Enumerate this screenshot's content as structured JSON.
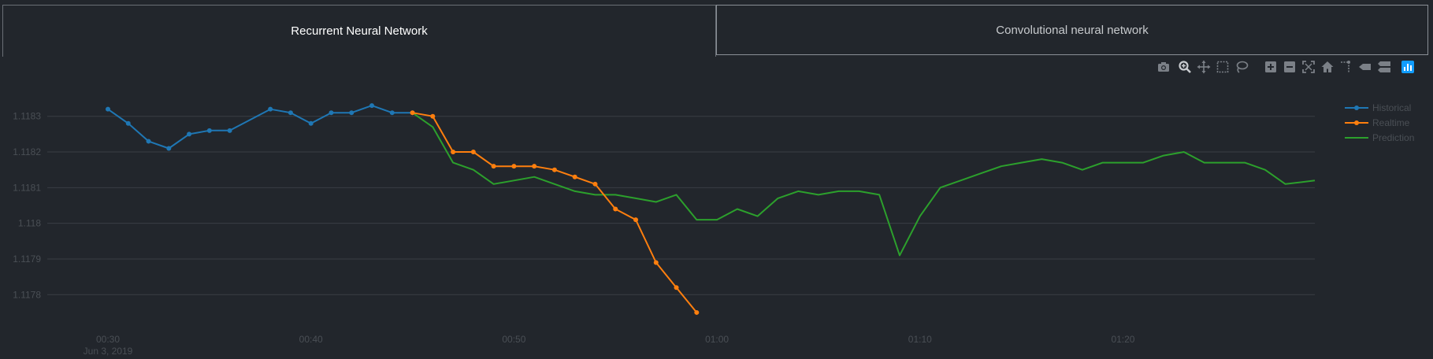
{
  "tabs": [
    {
      "label": "Recurrent Neural Network",
      "active": true
    },
    {
      "label": "Convolutional neural network",
      "active": false
    }
  ],
  "modebar": {
    "icons": [
      "camera-icon",
      "zoom-icon",
      "pan-icon",
      "box-select-icon",
      "lasso-select-icon",
      "zoom-in-icon",
      "zoom-out-icon",
      "autoscale-icon",
      "reset-axes-icon",
      "spike-lines-icon",
      "hover-closest-icon",
      "hover-compare-icon",
      "plotly-logo-icon"
    ]
  },
  "chart_data": {
    "type": "line",
    "x_tick_labels": [
      "00:30",
      "00:40",
      "00:50",
      "01:00",
      "01:10",
      "01:20"
    ],
    "x_tick_minutes": [
      30,
      40,
      50,
      60,
      70,
      80
    ],
    "x_date_label": "Jun 3, 2019",
    "y_tick_labels": [
      "1.1183",
      "1.1182",
      "1.1181",
      "1.118",
      "1.1179",
      "1.1178"
    ],
    "y_tick_values": [
      1.1183,
      1.1182,
      1.1181,
      1.118,
      1.1179,
      1.1178
    ],
    "xlim_minutes": [
      30,
      89.45
    ],
    "ylim": [
      1.11773,
      1.11837
    ],
    "legend_position": "top-right",
    "grid": true,
    "series": [
      {
        "name": "Historical",
        "color": "#1f77b4",
        "markers": true,
        "x": [
          30,
          31,
          32,
          33,
          34,
          35,
          36,
          38,
          39,
          40,
          41,
          42,
          43,
          44,
          45
        ],
        "y": [
          1.11832,
          1.11828,
          1.11823,
          1.11821,
          1.11825,
          1.11826,
          1.11826,
          1.11832,
          1.11831,
          1.11828,
          1.11831,
          1.11831,
          1.11833,
          1.11831,
          1.11831
        ]
      },
      {
        "name": "Realtime",
        "color": "#ff7f0e",
        "markers": true,
        "x": [
          45,
          46,
          47,
          48,
          49,
          50,
          51,
          52,
          53,
          54,
          55,
          56,
          57,
          58,
          59
        ],
        "y": [
          1.11831,
          1.1183,
          1.1182,
          1.1182,
          1.11816,
          1.11816,
          1.11816,
          1.11815,
          1.11813,
          1.11811,
          1.11804,
          1.11801,
          1.11789,
          1.11782,
          1.11775
        ]
      },
      {
        "name": "Prediction",
        "color": "#2ca02c",
        "markers": false,
        "x": [
          45,
          46,
          47,
          48,
          49,
          50,
          51,
          52,
          53,
          54,
          55,
          56,
          57,
          58,
          59,
          60,
          61,
          62,
          63,
          64,
          65,
          66,
          67,
          68,
          69,
          70,
          71,
          72,
          73,
          74,
          75,
          76,
          77,
          78,
          79,
          80,
          81,
          82,
          83,
          84,
          85,
          86,
          87,
          88,
          89.45
        ],
        "y": [
          1.11831,
          1.11827,
          1.11817,
          1.11815,
          1.11811,
          1.11812,
          1.11813,
          1.11811,
          1.11809,
          1.11808,
          1.11808,
          1.11807,
          1.11806,
          1.11808,
          1.11801,
          1.11801,
          1.11804,
          1.11802,
          1.11807,
          1.11809,
          1.11808,
          1.11809,
          1.11809,
          1.11808,
          1.11791,
          1.11802,
          1.1181,
          1.11812,
          1.11814,
          1.11816,
          1.11817,
          1.11818,
          1.11817,
          1.11815,
          1.11817,
          1.11817,
          1.11817,
          1.11819,
          1.1182,
          1.11817,
          1.11817,
          1.11817,
          1.11815,
          1.11811,
          1.11812
        ]
      }
    ]
  }
}
